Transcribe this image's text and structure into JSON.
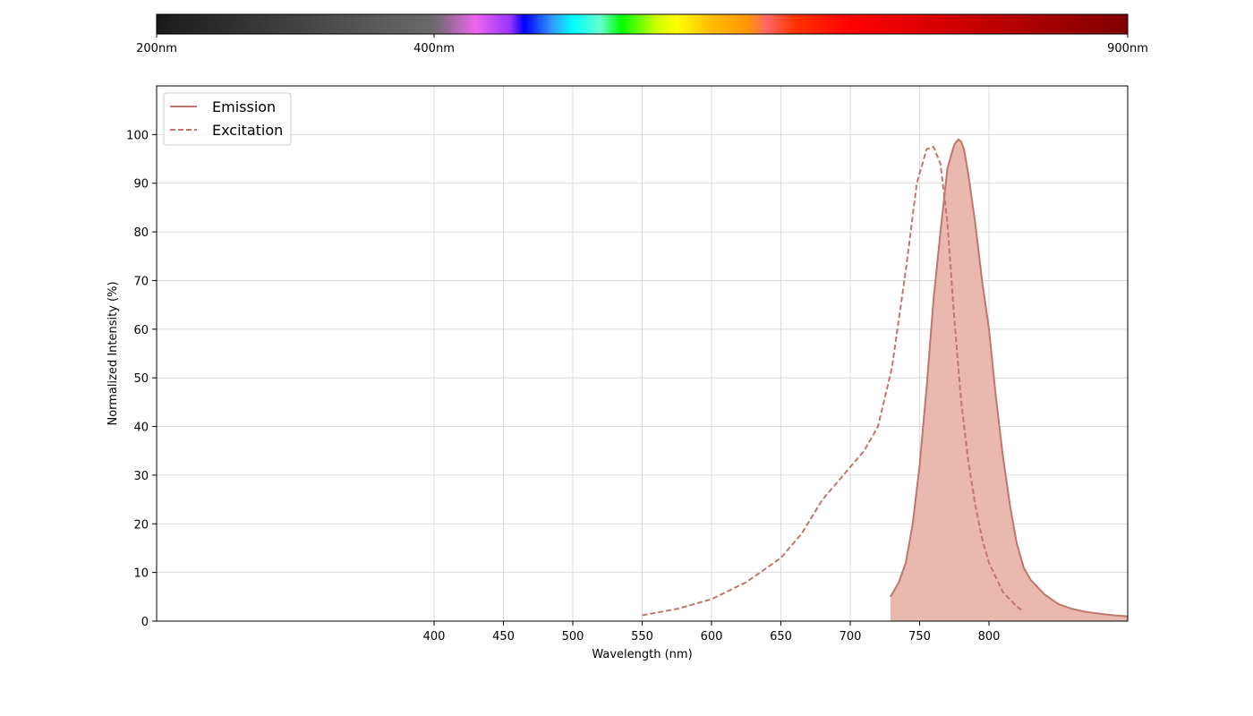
{
  "spectrum_bar": {
    "labels": [
      "200nm",
      "400nm",
      "900nm"
    ],
    "range_nm": [
      200,
      900
    ],
    "label_positions_nm": [
      200,
      400,
      900
    ],
    "stops": [
      {
        "nm": 200,
        "color": "#1a1a1a"
      },
      {
        "nm": 400,
        "color": "#6a6a6a"
      },
      {
        "nm": 430,
        "color": "#ee66ee"
      },
      {
        "nm": 455,
        "color": "#9933ff"
      },
      {
        "nm": 465,
        "color": "#0000ff"
      },
      {
        "nm": 485,
        "color": "#3399ff"
      },
      {
        "nm": 500,
        "color": "#00ffff"
      },
      {
        "nm": 520,
        "color": "#66ffcc"
      },
      {
        "nm": 535,
        "color": "#00ff00"
      },
      {
        "nm": 560,
        "color": "#ccff00"
      },
      {
        "nm": 575,
        "color": "#ffff00"
      },
      {
        "nm": 600,
        "color": "#ffbb00"
      },
      {
        "nm": 625,
        "color": "#ff9900"
      },
      {
        "nm": 640,
        "color": "#ff6666"
      },
      {
        "nm": 660,
        "color": "#ff3300"
      },
      {
        "nm": 700,
        "color": "#ff0000"
      },
      {
        "nm": 780,
        "color": "#cc0000"
      },
      {
        "nm": 900,
        "color": "#800000"
      }
    ]
  },
  "chart_data": {
    "type": "line",
    "title": "",
    "xlabel": "Wavelength (nm)",
    "ylabel": "Normalized Intensity (%)",
    "xlim": [
      200,
      900
    ],
    "ylim": [
      0,
      110
    ],
    "xticks": [
      400,
      450,
      500,
      550,
      600,
      650,
      700,
      750,
      800
    ],
    "yticks": [
      0,
      10,
      20,
      30,
      40,
      50,
      60,
      70,
      80,
      90,
      100
    ],
    "grid": true,
    "legend_position": "top-left",
    "series": [
      {
        "name": "Emission",
        "style": "solid",
        "filled": true,
        "color": "#c0766b",
        "fill_color": "#e9b8ae",
        "x": [
          729,
          735,
          740,
          745,
          750,
          755,
          760,
          765,
          770,
          775,
          778,
          780,
          782,
          785,
          790,
          795,
          800,
          805,
          810,
          815,
          820,
          825,
          830,
          840,
          850,
          860,
          870,
          880,
          890,
          900
        ],
        "y": [
          5,
          8,
          12,
          20,
          32,
          48,
          66,
          80,
          93,
          98,
          99,
          98.5,
          97,
          92,
          82,
          70,
          60,
          46,
          34,
          24,
          16,
          11,
          8.5,
          5.5,
          3.5,
          2.5,
          1.9,
          1.5,
          1.2,
          1
        ]
      },
      {
        "name": "Excitation",
        "style": "dashed",
        "filled": false,
        "color": "#c0766b",
        "x": [
          550,
          575,
          600,
          625,
          650,
          665,
          680,
          695,
          710,
          720,
          730,
          740,
          748,
          755,
          760,
          765,
          770,
          775,
          780,
          785,
          790,
          795,
          800,
          810,
          820,
          825
        ],
        "y": [
          1.2,
          2.5,
          4.5,
          8,
          13,
          18,
          25,
          30,
          35,
          40,
          52,
          72,
          90,
          97,
          97.5,
          94,
          82,
          62,
          45,
          33,
          24,
          17,
          12,
          6,
          3,
          2
        ]
      }
    ]
  }
}
